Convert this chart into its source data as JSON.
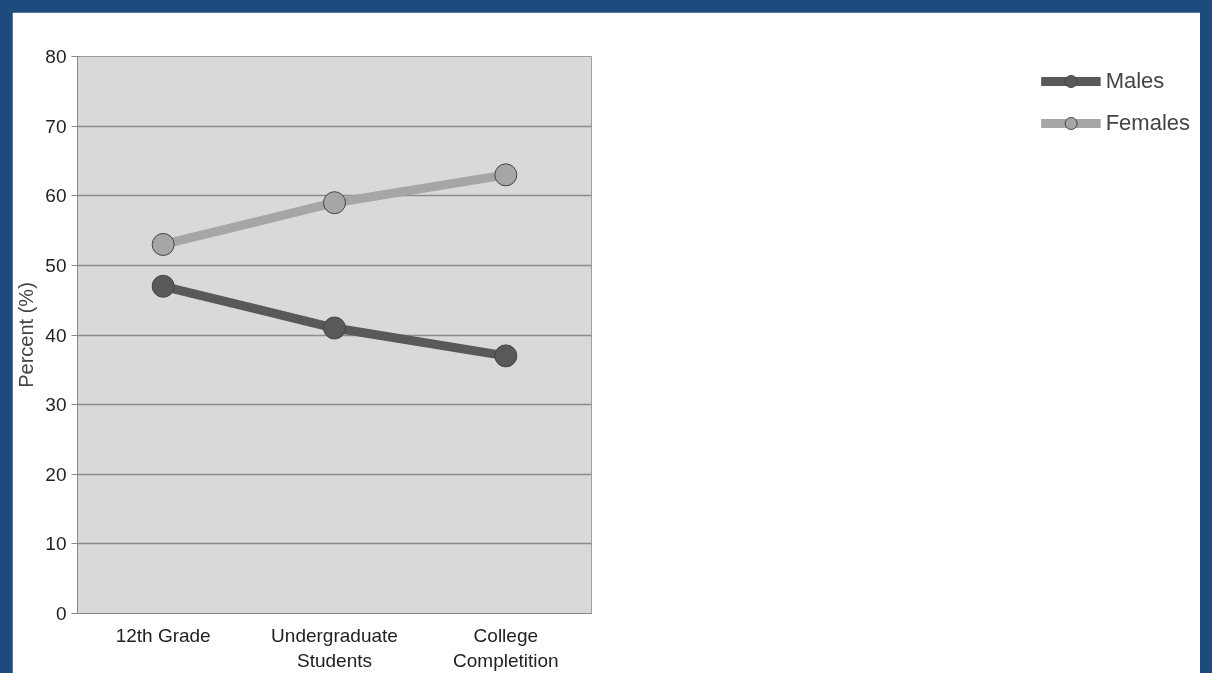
{
  "chart_data": {
    "type": "line",
    "ylabel": "Percent (%)",
    "categories": [
      "12th Grade",
      "Undergraduate\nStudents",
      "College\nCompletition"
    ],
    "series": [
      {
        "name": "Males",
        "color": "#595959",
        "values": [
          47,
          41,
          37
        ]
      },
      {
        "name": "Females",
        "color": "#a6a6a6",
        "values": [
          53,
          59,
          63
        ]
      }
    ],
    "ylim": [
      0,
      80
    ],
    "yticks": [
      0,
      10,
      20,
      30,
      40,
      50,
      60,
      70,
      80
    ],
    "grid": "y",
    "legend": "right",
    "marker": "circle",
    "line_style": "solid"
  }
}
